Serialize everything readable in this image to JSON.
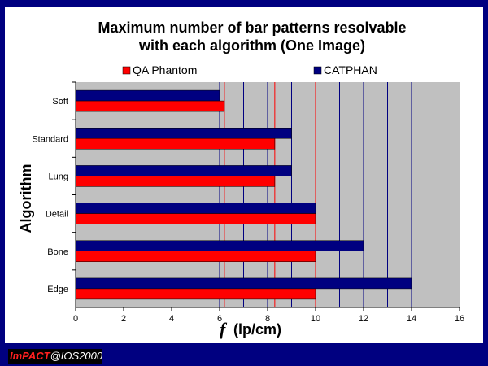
{
  "chart_data": {
    "type": "bar",
    "orientation": "horizontal",
    "title_line1": "Maximum number of bar patterns resolvable",
    "title_line2": "with each algorithm (One Image)",
    "categories": [
      "Soft",
      "Standard",
      "Lung",
      "Detail",
      "Bone",
      "Edge"
    ],
    "series": [
      {
        "name": "QA Phantom",
        "color": "#ff0000",
        "values": [
          6.2,
          8.3,
          8.3,
          10,
          10,
          10
        ]
      },
      {
        "name": "CATPHAN",
        "color": "#000080",
        "values": [
          6,
          9,
          9,
          10,
          12,
          14
        ]
      }
    ],
    "legend_order": [
      0,
      1
    ],
    "legend_position": "top",
    "ylabel": "Algorithm",
    "xlabel_symbol": "f",
    "xlabel_unit": "(lp/cm)",
    "xlim": [
      0,
      16
    ],
    "xticks": [
      0,
      2,
      4,
      6,
      8,
      10,
      12,
      14,
      16
    ],
    "plot_background": "#c0c0c0",
    "reference_lines": [
      {
        "value": 6,
        "color": "#000080"
      },
      {
        "value": 6.2,
        "color": "#ff0000"
      },
      {
        "value": 7,
        "color": "#000080"
      },
      {
        "value": 8,
        "color": "#000080"
      },
      {
        "value": 8.3,
        "color": "#ff0000"
      },
      {
        "value": 9,
        "color": "#000080"
      },
      {
        "value": 10,
        "color": "#ff0000"
      },
      {
        "value": 11,
        "color": "#000080"
      },
      {
        "value": 12,
        "color": "#000080"
      },
      {
        "value": 13,
        "color": "#000080"
      },
      {
        "value": 14,
        "color": "#000080"
      }
    ]
  },
  "footer": {
    "brand": "ImPACT",
    "rest": "@IOS2000"
  }
}
